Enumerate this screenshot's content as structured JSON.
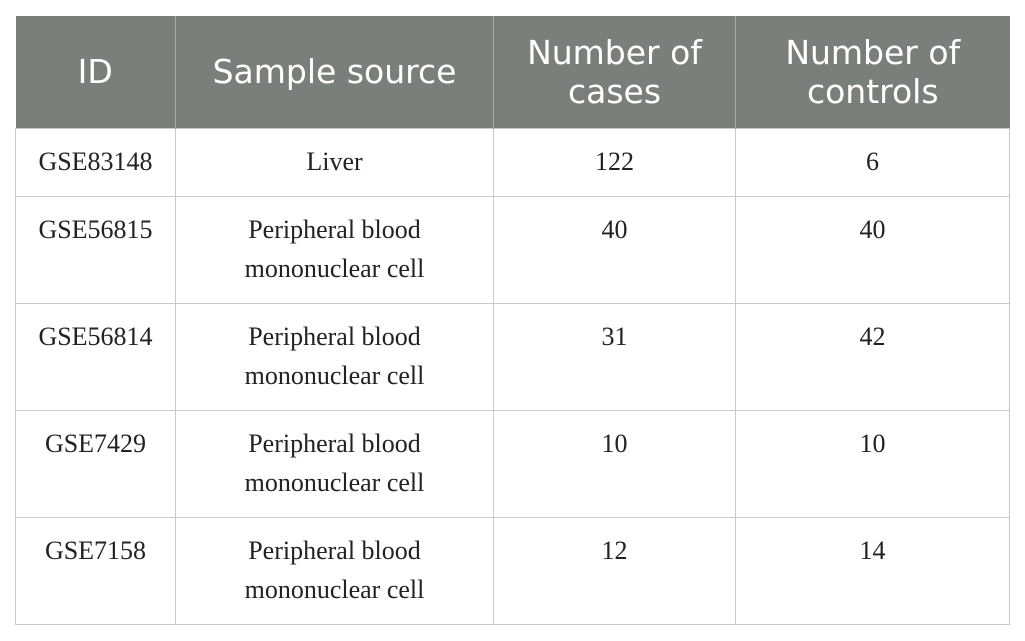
{
  "table": {
    "headers": {
      "id": "ID",
      "source": "Sample source",
      "cases": "Number of cases",
      "controls": "Number of controls"
    },
    "rows": [
      {
        "id": "GSE83148",
        "source": "Liver",
        "cases": "122",
        "controls": "6"
      },
      {
        "id": "GSE56815",
        "source": "Peripheral blood mononuclear cell",
        "cases": "40",
        "controls": "40"
      },
      {
        "id": "GSE56814",
        "source": "Peripheral blood mononuclear cell",
        "cases": "31",
        "controls": "42"
      },
      {
        "id": "GSE7429",
        "source": "Peripheral blood mononuclear cell",
        "cases": "10",
        "controls": "10"
      },
      {
        "id": "GSE7158",
        "source": "Peripheral blood mononuclear cell",
        "cases": "12",
        "controls": "14"
      }
    ]
  },
  "colors": {
    "header_background": "#7b7f7c",
    "header_text": "#ffffff",
    "grid_lines": "#c9c9c9"
  }
}
